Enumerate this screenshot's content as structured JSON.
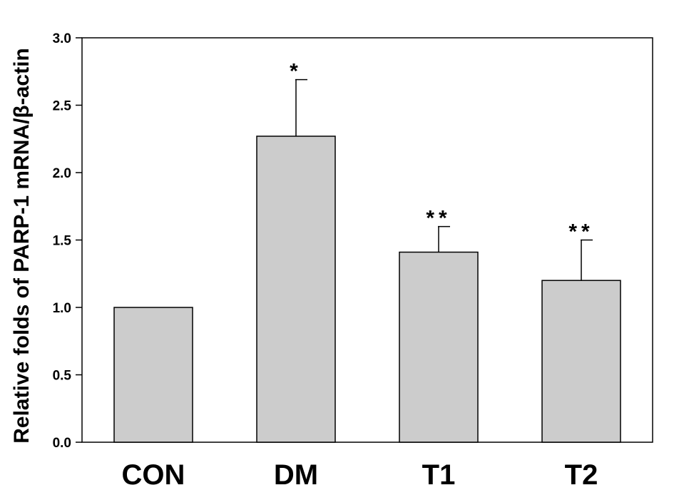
{
  "chart_data": {
    "type": "bar",
    "title": "",
    "xlabel": "",
    "ylabel": "Relative folds of PARP-1 mRNA/β-actin",
    "ylim": [
      0,
      3.0
    ],
    "yticks": [
      "0.0",
      "0.5",
      "1.0",
      "1.5",
      "2.0",
      "2.5",
      "3.0"
    ],
    "yticks_values": [
      0,
      0.5,
      1.0,
      1.5,
      2.0,
      2.5,
      3.0
    ],
    "categories": [
      "CON",
      "DM",
      "T1",
      "T2"
    ],
    "values": [
      1.0,
      2.27,
      1.41,
      1.2
    ],
    "error_upper": [
      0,
      0.42,
      0.19,
      0.3
    ],
    "significance": [
      "",
      "*",
      "**",
      "**"
    ],
    "bar_color": "#cccccc",
    "grid": false,
    "legend": "none"
  }
}
